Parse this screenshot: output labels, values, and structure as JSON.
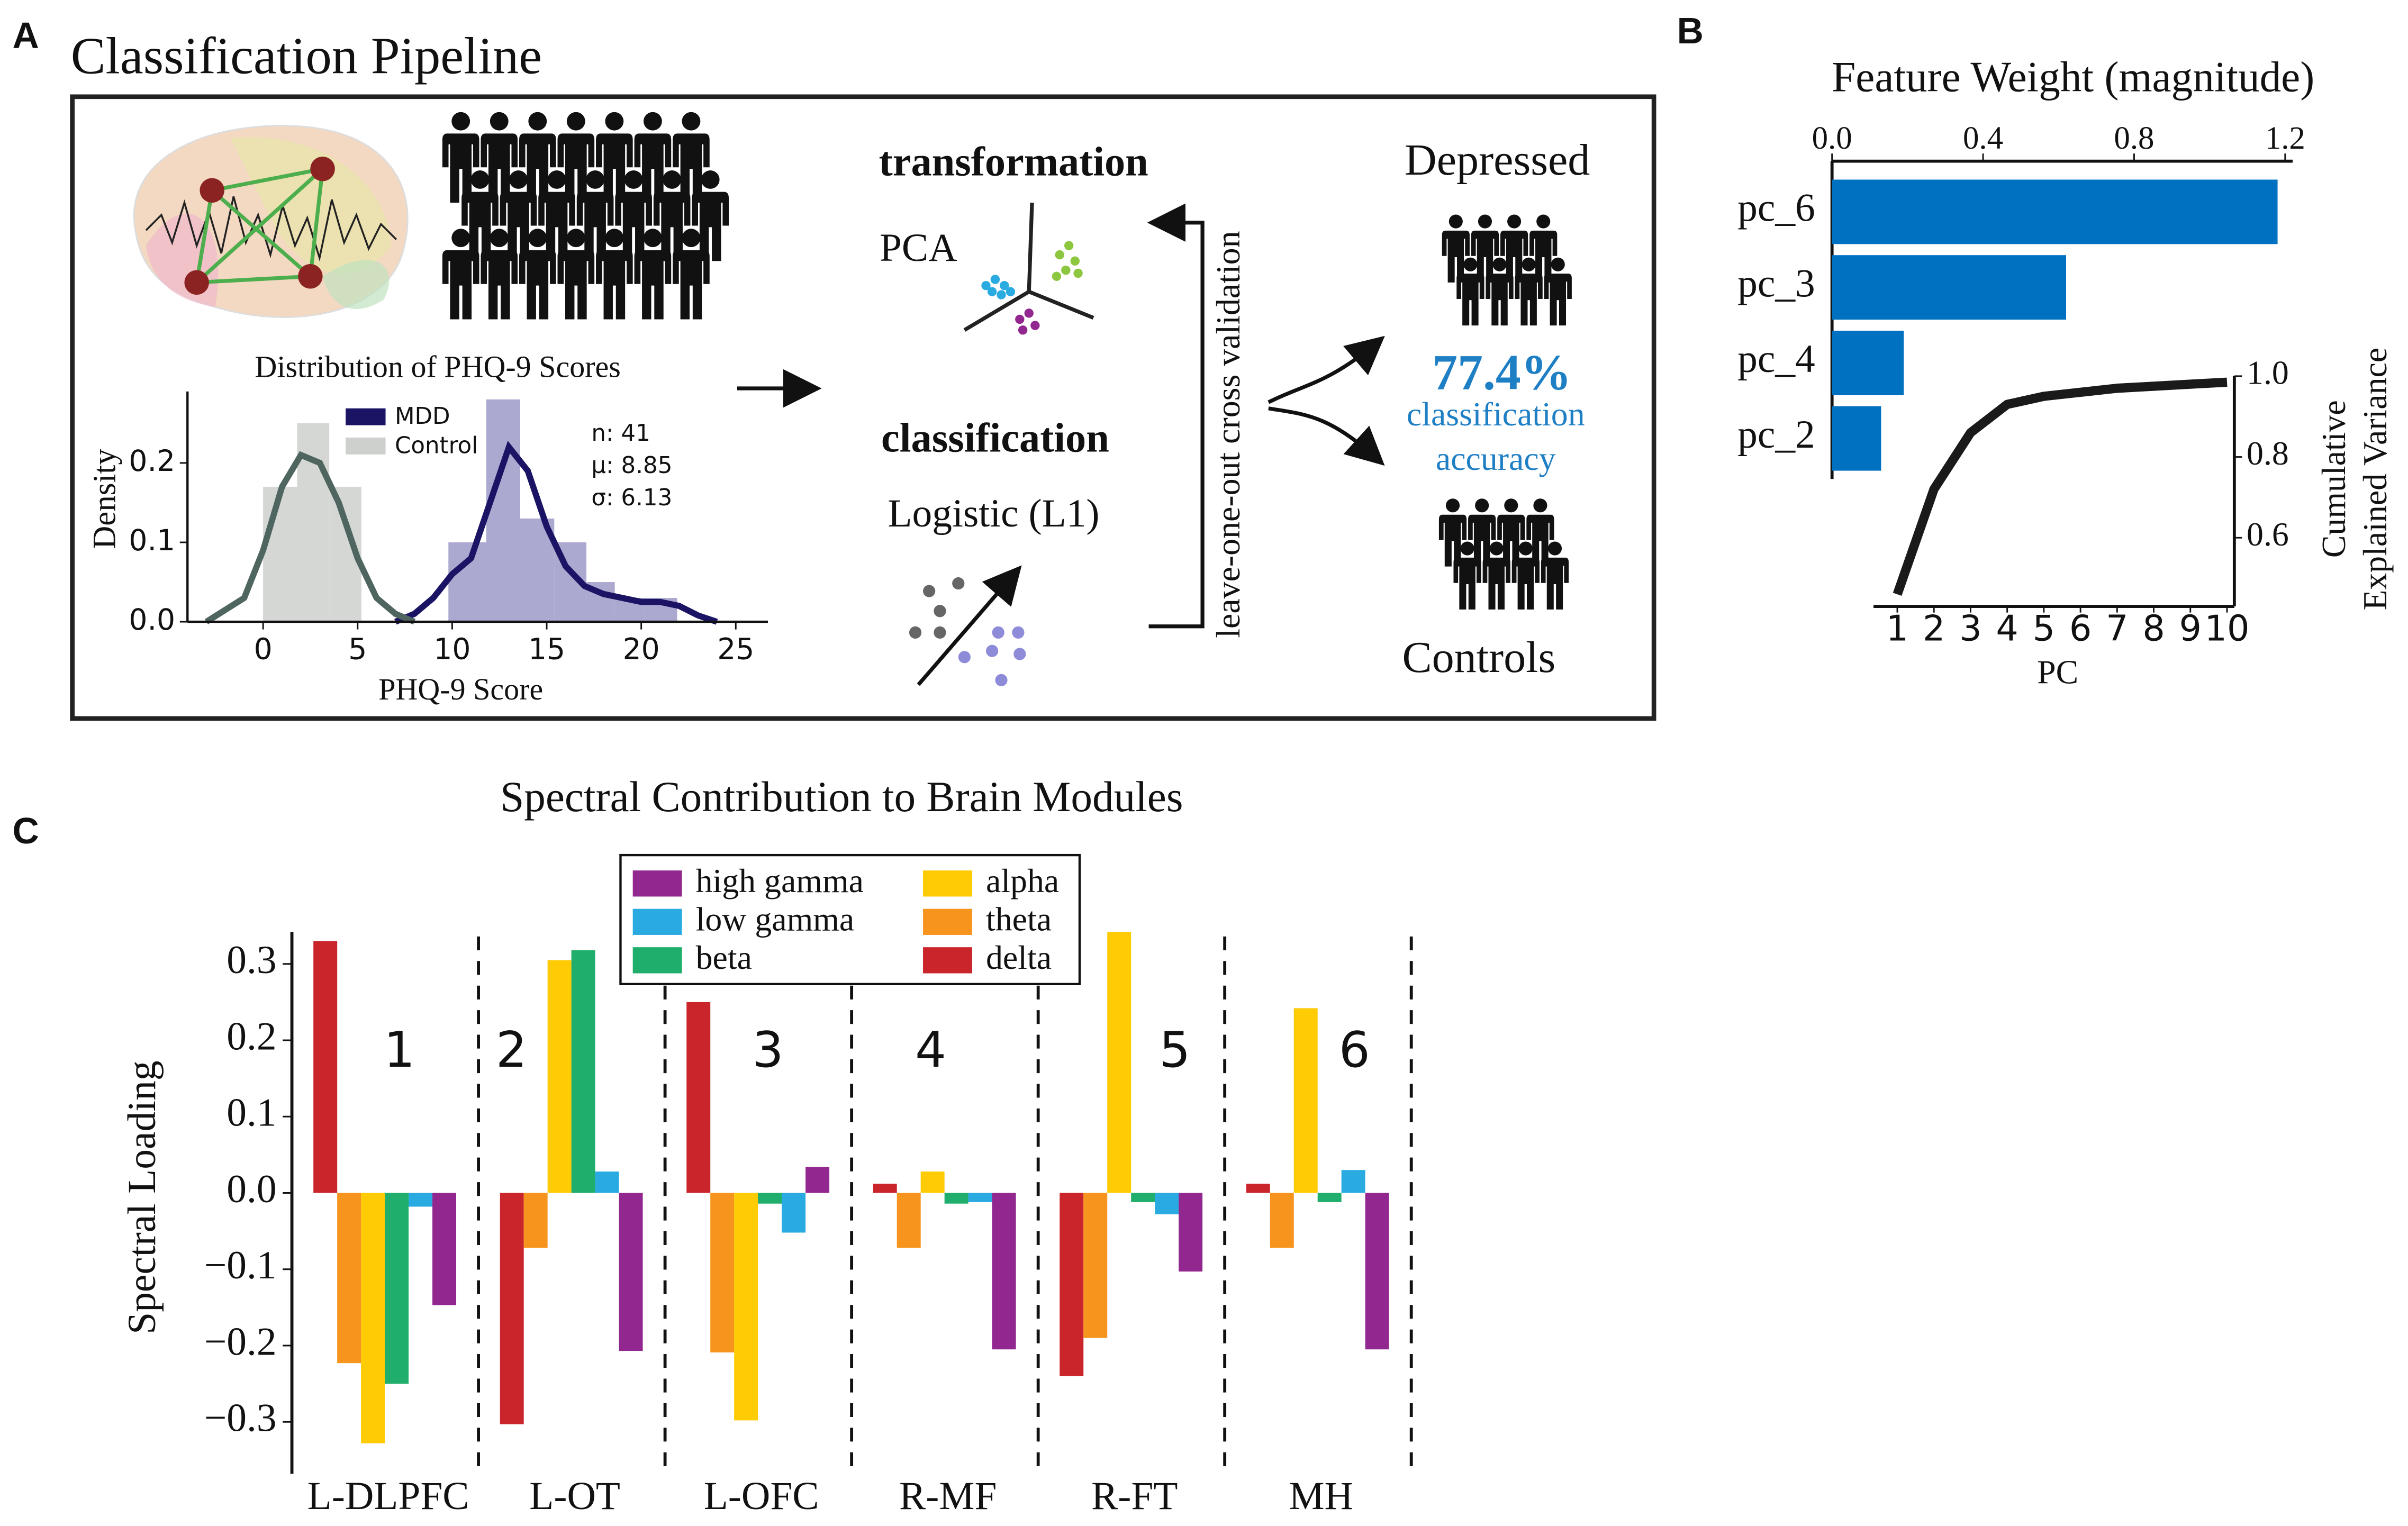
{
  "panels": {
    "a": "A",
    "b": "B",
    "c": "C"
  },
  "pipeline": {
    "title": "Classification Pipeline",
    "transformation": "transformation",
    "pca": "PCA",
    "classification": "classification",
    "logistic": "Logistic (L1)",
    "cross_validation": "leave-one-out cross validation",
    "depressed": "Depressed",
    "accuracy_value": "77.4%",
    "accuracy_label_1": "classification",
    "accuracy_label_2": "accuracy",
    "controls": "Controls"
  },
  "chart_data": [
    {
      "type": "histogram",
      "title": "Distribution of PHQ-9 Scores",
      "x_label": "PHQ-9 Score",
      "y_label": "Density",
      "xlim": [
        -4,
        26.7
      ],
      "xticks": [
        0,
        5,
        10,
        15,
        20,
        25
      ],
      "ylim": [
        0,
        0.29
      ],
      "yticks": [
        {
          "value": 0,
          "label": "0.0"
        },
        0.1,
        0.2
      ],
      "annotations": [
        "n: 41",
        "μ: 8.85",
        "σ: 6.13"
      ],
      "series": [
        {
          "name": "MDD",
          "color": "#1b1464",
          "bar_color": "#9e9ac8",
          "bins": [
            9.8,
            11.8,
            13.6,
            15.4,
            17.1,
            18.6,
            20.2,
            21.9
          ],
          "values": [
            0.1,
            0.28,
            0.13,
            0.1,
            0.05,
            0.03,
            0.03
          ],
          "density": {
            "x": [
              7,
              8,
              9,
              10,
              11,
              12,
              13,
              14,
              15,
              16,
              17,
              18,
              19,
              20,
              21,
              22,
              23,
              24
            ],
            "values": [
              0,
              0.01,
              0.03,
              0.06,
              0.08,
              0.15,
              0.22,
              0.19,
              0.12,
              0.07,
              0.045,
              0.035,
              0.03,
              0.025,
              0.025,
              0.02,
              0.008,
              0
            ]
          }
        },
        {
          "name": "Control",
          "color": "#4f6560",
          "bar_color": "#cdd0cc",
          "bins": [
            0,
            1.8,
            3.5,
            5.2
          ],
          "values": [
            0.17,
            0.25,
            0.17
          ],
          "density": {
            "x": [
              -3,
              -1,
              0,
              1,
              2,
              3,
              4,
              5,
              6,
              7,
              8
            ],
            "values": [
              0,
              0.03,
              0.09,
              0.17,
              0.21,
              0.2,
              0.15,
              0.08,
              0.03,
              0.01,
              0
            ]
          }
        }
      ]
    },
    {
      "type": "hbar",
      "title": "Feature Weight (magnitude)",
      "categories": [
        "pc_6",
        "pc_3",
        "pc_4",
        "pc_2"
      ],
      "values": [
        1.18,
        0.62,
        0.19,
        0.13
      ],
      "color": "#0070c0",
      "xlim": [
        0,
        1.22
      ],
      "xticks": [
        {
          "value": 0,
          "label": "0.0"
        },
        0.4,
        0.8,
        1.2
      ]
    },
    {
      "type": "line",
      "x_label": "PC",
      "y_label": [
        "Cumulative",
        "Explained Variance"
      ],
      "x": [
        1,
        2,
        3,
        4,
        5,
        6,
        7,
        8,
        9,
        10
      ],
      "values": [
        0.46,
        0.72,
        0.86,
        0.93,
        0.95,
        0.96,
        0.97,
        0.975,
        0.98,
        0.985
      ],
      "color": "#1a1a1a",
      "xlim": [
        0.35,
        10.2
      ],
      "xticks": [
        1,
        2,
        3,
        4,
        5,
        6,
        7,
        8,
        9,
        10
      ],
      "ylim": [
        0.43,
        1.0
      ],
      "yticks": [
        0.6,
        0.8,
        {
          "value": 1,
          "label": "1.0"
        }
      ]
    },
    {
      "type": "grouped_bar",
      "title": "Spectral Contribution to Brain Modules",
      "y_label": "Spectral Loading",
      "categories": [
        "L-DLPFC",
        "L-OT",
        "L-OFC",
        "R-MF",
        "R-FT",
        "MH"
      ],
      "module_labels": [
        "1",
        "2",
        "3",
        "4",
        "5",
        "6"
      ],
      "ylim": [
        -0.368,
        0.342
      ],
      "yticks": [
        {
          "value": -0.3,
          "label": "−0.3"
        },
        {
          "value": -0.2,
          "label": "−0.2"
        },
        {
          "value": -0.1,
          "label": "−0.1"
        },
        {
          "value": 0,
          "label": "0.0"
        },
        0.1,
        0.2,
        0.3
      ],
      "series": [
        {
          "name": "delta",
          "color": "#c9252b",
          "values": [
            0.33,
            -0.303,
            0.25,
            0.012,
            -0.24,
            0.012
          ]
        },
        {
          "name": "theta",
          "color": "#f7941d",
          "values": [
            -0.223,
            -0.072,
            -0.209,
            -0.072,
            -0.19,
            -0.072
          ]
        },
        {
          "name": "alpha",
          "color": "#ffcb05",
          "values": [
            -0.328,
            0.305,
            -0.298,
            0.028,
            0.342,
            0.242
          ]
        },
        {
          "name": "beta",
          "color": "#1fae6b",
          "values": [
            -0.25,
            0.318,
            -0.014,
            -0.014,
            -0.012,
            -0.012
          ]
        },
        {
          "name": "low gamma",
          "color": "#29abe2",
          "values": [
            -0.018,
            0.028,
            -0.052,
            -0.012,
            -0.028,
            0.03
          ]
        },
        {
          "name": "high gamma",
          "color": "#92278f",
          "values": [
            -0.147,
            -0.207,
            0.034,
            -0.205,
            -0.103,
            -0.205
          ]
        }
      ]
    }
  ]
}
